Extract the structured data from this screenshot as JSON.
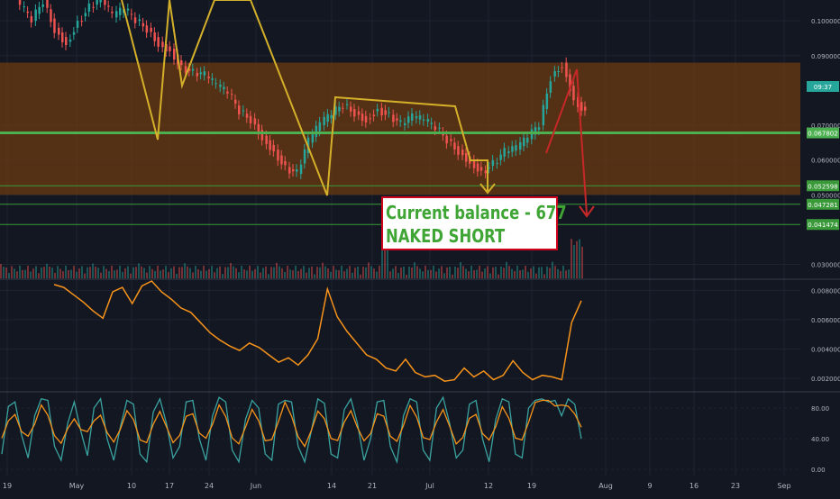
{
  "colors": {
    "background": "#131722",
    "grid": "#1f2330",
    "axis_text": "#b2b5be",
    "zone_fill": "#6b3a12",
    "candle_up": "#26a69a",
    "candle_down": "#ef5350",
    "ma_line": "#d4b02a",
    "green_line": "#4caf50",
    "thin_green": "#3a9a3a",
    "volatility_line": "#f7931a",
    "stoch_k": "#3aa3a0",
    "stoch_d": "#f7931a",
    "red_arrow": "#c62828",
    "yellow_arrow": "#d4b02a"
  },
  "note": {
    "line1": "Current balance - 677",
    "line2": "NAKED SHORT"
  },
  "price_tags": {
    "time_tag": "09:37",
    "level_1": "0.067802",
    "level_2": "0.052598",
    "level_3": "0.047281",
    "level_4": "0.041474"
  },
  "chart_data": [
    {
      "type": "line",
      "panel": "price",
      "y_ticks": [
        "0.100000",
        "0.090000",
        "0.070000",
        "0.060000",
        "0.050000",
        "0.030000"
      ],
      "ylim": [
        0.026,
        0.106
      ],
      "x_ticks": [
        "19",
        "May",
        "10",
        "17",
        "24",
        "Jun",
        "14",
        "21",
        "Jul",
        "12",
        "19",
        "Aug",
        "9",
        "16",
        "23",
        "Sep"
      ],
      "zone": {
        "from": 0.05,
        "to": 0.088
      },
      "levels": [
        0.067802,
        0.052598,
        0.047281,
        0.041474
      ],
      "yellow_path_note": "zigzag trend drawing",
      "price_series": [
        0.112,
        0.104,
        0.1,
        0.106,
        0.098,
        0.094,
        0.1,
        0.104,
        0.106,
        0.101,
        0.103,
        0.1,
        0.098,
        0.094,
        0.092,
        0.087,
        0.085,
        0.084,
        0.081,
        0.079,
        0.074,
        0.072,
        0.067,
        0.063,
        0.058,
        0.056,
        0.065,
        0.07,
        0.073,
        0.076,
        0.074,
        0.072,
        0.075,
        0.073,
        0.07,
        0.072,
        0.071,
        0.069,
        0.066,
        0.063,
        0.06,
        0.057,
        0.059,
        0.062,
        0.063,
        0.066,
        0.07,
        0.084,
        0.088,
        0.078,
        0.074
      ]
    },
    {
      "type": "line",
      "panel": "volatility",
      "y_ticks": [
        "0.008000",
        "0.006000",
        "0.004000",
        "0.002000"
      ],
      "ylim": [
        0.0012,
        0.0087
      ],
      "values": [
        0.0084,
        0.0082,
        0.0077,
        0.0072,
        0.0066,
        0.0061,
        0.0079,
        0.0082,
        0.0071,
        0.0083,
        0.0088,
        0.0079,
        0.0074,
        0.0068,
        0.0065,
        0.0058,
        0.0051,
        0.0046,
        0.0042,
        0.0039,
        0.0044,
        0.0041,
        0.0036,
        0.0031,
        0.0034,
        0.0029,
        0.0036,
        0.0047,
        0.0081,
        0.0062,
        0.0052,
        0.0044,
        0.0036,
        0.0033,
        0.0027,
        0.0025,
        0.0033,
        0.0024,
        0.0021,
        0.0022,
        0.0018,
        0.0019,
        0.0027,
        0.0021,
        0.0025,
        0.0019,
        0.0022,
        0.0032,
        0.0024,
        0.0019,
        0.0022,
        0.0021,
        0.0019,
        0.0058,
        0.0073
      ]
    },
    {
      "type": "line",
      "panel": "stochastic",
      "y_ticks": [
        "80.00",
        "40.00",
        "0.00"
      ],
      "ylim": [
        -8,
        100
      ],
      "k_values": [
        20,
        82,
        88,
        45,
        15,
        70,
        92,
        90,
        30,
        12,
        60,
        88,
        50,
        18,
        80,
        92,
        40,
        12,
        55,
        90,
        85,
        20,
        10,
        75,
        92,
        60,
        15,
        30,
        88,
        90,
        40,
        12,
        70,
        94,
        88,
        25,
        10,
        65,
        90,
        80,
        20,
        12,
        85,
        90,
        88,
        30,
        10,
        50,
        92,
        86,
        20,
        15,
        78,
        92,
        60,
        12,
        40,
        88,
        90,
        30,
        10,
        70,
        92,
        88,
        25,
        12,
        80,
        94,
        60,
        15,
        25,
        85,
        90,
        40,
        10,
        65,
        92,
        88,
        20,
        15,
        80,
        90,
        92,
        88,
        90,
        70,
        92,
        85,
        40
      ]
    }
  ]
}
